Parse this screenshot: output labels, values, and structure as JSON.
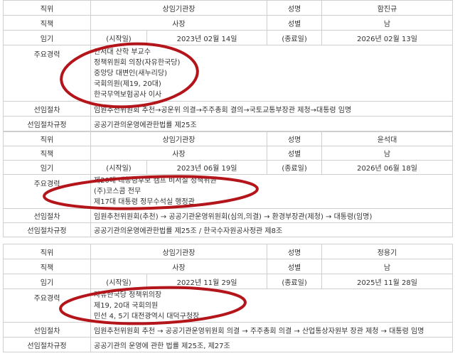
{
  "labels": {
    "position": "직위",
    "title": "직책",
    "term": "임기",
    "career": "주요경력",
    "procedure": "선임절차",
    "rule": "선임절차규정",
    "name": "성명",
    "gender": "성별",
    "start": "(시작일)",
    "end": "(종료일)"
  },
  "records": [
    {
      "position": "상임기관장",
      "name": "함진규",
      "title": "사장",
      "gender": "남",
      "start_date": "2023년 02월 14일",
      "end_date": "2026년 02월 13일",
      "career": [
        "안서대 산학 부교수",
        "정책위원회 의장(자유한국당)",
        "중앙당 대변인(새누리당)",
        "국회의원(제19, 20대)",
        "한국무역보험공사 이사"
      ],
      "procedure": "임원추천위원회 추천→공운위 의결→주주총회 결의→국토교통부장관 제청→대통령 임명",
      "rule": "공공기관의운영에관한법률 제25조"
    },
    {
      "position": "상임기관장",
      "name": "윤석대",
      "title": "사장",
      "gender": "남",
      "start_date": "2023년 06월 19일",
      "end_date": "2026년 06월 18일",
      "career": [
        "제20대 대통령후보 캠프 비서실 정책위원",
        "(주)코스콤 전무",
        "제17대 대통령 정무수석실 행정관"
      ],
      "procedure": "임원추천위원회(추천) → 공공기관운영위원회(심의,의결) → 환경부장관(제청) → 대통령(임명)",
      "rule": "공공기관의운영에관한법률 제25조 / 한국수자원공사정관 제8조"
    },
    {
      "position": "상임기관장",
      "name": "정용기",
      "title": "사장",
      "gender": "남",
      "start_date": "2022년 11월 29일",
      "end_date": "2025년 11월 28일",
      "career": [
        "자유한국당 정책위의장",
        "제19, 20대 국회의원",
        "민선 4, 5기 대전광역시 대덕구청장"
      ],
      "procedure": "임원추천위원회 추천 → 공공기관운영위원회 의결 → 주주총회 의결 → 산업통상자원부 장관 제청 → 대통령 임명",
      "rule": "공공기관의 운영에 관한 법률 제25조, 제27조"
    }
  ],
  "annotation_color": "#b3151b"
}
